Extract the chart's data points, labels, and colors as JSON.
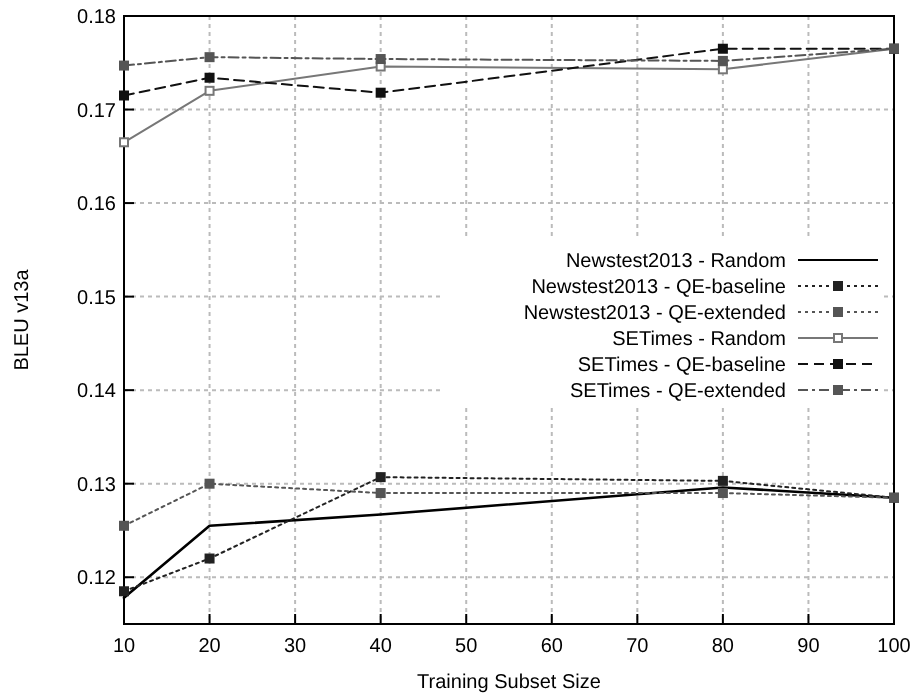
{
  "chart_data": {
    "type": "line",
    "xlabel": "Training Subset Size",
    "ylabel": "BLEU v13a",
    "x": [
      10,
      20,
      40,
      80,
      100
    ],
    "series": [
      {
        "name": "Newstest2013 - Random",
        "color": "#000000",
        "line_style": "solid",
        "marker": "none",
        "values": [
          0.1178,
          0.1255,
          0.1267,
          0.1296,
          0.1285
        ]
      },
      {
        "name": "Newstest2013 - QE-baseline",
        "color": "#222222",
        "line_style": "dotted",
        "marker": "square",
        "values": [
          0.1185,
          0.122,
          0.1307,
          0.1303,
          0.1285
        ]
      },
      {
        "name": "Newstest2013 - QE-extended",
        "color": "#555555",
        "line_style": "dotted",
        "marker": "square",
        "values": [
          0.1255,
          0.13,
          0.129,
          0.129,
          0.1285
        ]
      },
      {
        "name": "SETimes - Random",
        "color": "#777777",
        "line_style": "solid",
        "marker": "square",
        "values": [
          0.1665,
          0.172,
          0.1746,
          0.1743,
          0.1765
        ]
      },
      {
        "name": "SETimes - QE-baseline",
        "color": "#111111",
        "line_style": "dashed",
        "marker": "square",
        "values": [
          0.1715,
          0.1734,
          0.1718,
          0.1765,
          0.1765
        ]
      },
      {
        "name": "SETimes - QE-extended",
        "color": "#555555",
        "line_style": "dashdot",
        "marker": "square",
        "values": [
          0.1747,
          0.1756,
          0.1754,
          0.1752,
          0.1765
        ]
      }
    ],
    "xlim": [
      10,
      100
    ],
    "xticks": [
      10,
      20,
      30,
      40,
      50,
      60,
      70,
      80,
      90,
      100
    ],
    "ylim": [
      0.115,
      0.18
    ],
    "yticks": [
      0.12,
      0.13,
      0.14,
      0.15,
      0.16,
      0.17,
      0.18
    ],
    "grid": true,
    "legend": "right"
  }
}
